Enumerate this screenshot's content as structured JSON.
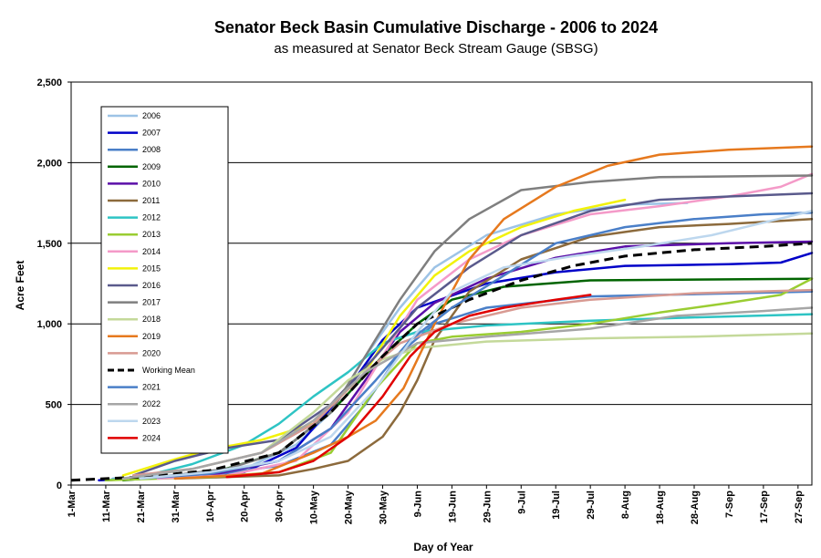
{
  "chart_data": {
    "type": "line",
    "title": "Senator Beck Basin Cumulative Discharge - 2006 to 2024",
    "subtitle": "as measured at Senator Beck Stream Gauge (SBSG)",
    "xlabel": "Day of Year",
    "ylabel": "Acre Feet",
    "x_unit": "days since 1-Mar",
    "xlim": [
      0,
      214
    ],
    "ylim": [
      0,
      2500
    ],
    "y_ticks": [
      0,
      500,
      1000,
      1500,
      2000,
      2500
    ],
    "y_tick_labels": [
      "0",
      "500",
      "1,000",
      "1,500",
      "2,000",
      "2,500"
    ],
    "x_tick_labels": [
      "1-Mar",
      "11-Mar",
      "21-Mar",
      "31-Mar",
      "10-Apr",
      "20-Apr",
      "30-Apr",
      "10-May",
      "20-May",
      "30-May",
      "9-Jun",
      "19-Jun",
      "29-Jun",
      "9-Jul",
      "19-Jul",
      "29-Jul",
      "8-Aug",
      "18-Aug",
      "28-Aug",
      "7-Sep",
      "17-Sep",
      "27-Sep"
    ],
    "x_tick_step": 10,
    "grid": "horizontal",
    "legend_position": "top-left",
    "series": [
      {
        "name": "2006",
        "color": "#9dc3e6",
        "dash": false,
        "points": [
          [
            12,
            40
          ],
          [
            30,
            60
          ],
          [
            50,
            100
          ],
          [
            65,
            250
          ],
          [
            75,
            450
          ],
          [
            85,
            800
          ],
          [
            95,
            1100
          ],
          [
            105,
            1350
          ],
          [
            120,
            1550
          ],
          [
            140,
            1680
          ],
          [
            160,
            1740
          ],
          [
            178,
            1750
          ]
        ]
      },
      {
        "name": "2007",
        "color": "#0000c8",
        "dash": false,
        "points": [
          [
            8,
            30
          ],
          [
            30,
            50
          ],
          [
            50,
            80
          ],
          [
            65,
            230
          ],
          [
            80,
            600
          ],
          [
            90,
            900
          ],
          [
            100,
            1100
          ],
          [
            120,
            1250
          ],
          [
            140,
            1320
          ],
          [
            160,
            1360
          ],
          [
            190,
            1370
          ],
          [
            205,
            1380
          ],
          [
            214,
            1440
          ]
        ]
      },
      {
        "name": "2008",
        "color": "#4a7fc8",
        "dash": false,
        "points": [
          [
            20,
            40
          ],
          [
            40,
            60
          ],
          [
            60,
            120
          ],
          [
            75,
            250
          ],
          [
            85,
            500
          ],
          [
            95,
            820
          ],
          [
            105,
            1000
          ],
          [
            120,
            1100
          ],
          [
            150,
            1170
          ],
          [
            214,
            1200
          ]
        ]
      },
      {
        "name": "2009",
        "color": "#006400",
        "dash": false,
        "points": [
          [
            15,
            30
          ],
          [
            40,
            70
          ],
          [
            60,
            200
          ],
          [
            75,
            450
          ],
          [
            90,
            800
          ],
          [
            100,
            1000
          ],
          [
            110,
            1150
          ],
          [
            125,
            1230
          ],
          [
            150,
            1270
          ],
          [
            214,
            1280
          ]
        ]
      },
      {
        "name": "2010",
        "color": "#5b0fa8",
        "dash": false,
        "points": [
          [
            10,
            30
          ],
          [
            40,
            60
          ],
          [
            60,
            150
          ],
          [
            75,
            350
          ],
          [
            85,
            650
          ],
          [
            95,
            950
          ],
          [
            105,
            1130
          ],
          [
            120,
            1280
          ],
          [
            140,
            1410
          ],
          [
            160,
            1480
          ],
          [
            190,
            1500
          ],
          [
            214,
            1510
          ]
        ]
      },
      {
        "name": "2011",
        "color": "#8c6a3c",
        "dash": false,
        "points": [
          [
            30,
            40
          ],
          [
            60,
            60
          ],
          [
            70,
            100
          ],
          [
            80,
            150
          ],
          [
            90,
            300
          ],
          [
            95,
            450
          ],
          [
            100,
            650
          ],
          [
            105,
            900
          ],
          [
            115,
            1200
          ],
          [
            130,
            1400
          ],
          [
            150,
            1540
          ],
          [
            170,
            1600
          ],
          [
            190,
            1620
          ],
          [
            214,
            1650
          ]
        ]
      },
      {
        "name": "2012",
        "color": "#2ec4c4",
        "dash": false,
        "points": [
          [
            10,
            30
          ],
          [
            20,
            50
          ],
          [
            35,
            130
          ],
          [
            50,
            250
          ],
          [
            60,
            380
          ],
          [
            70,
            550
          ],
          [
            80,
            700
          ],
          [
            90,
            880
          ],
          [
            100,
            950
          ],
          [
            120,
            990
          ],
          [
            150,
            1020
          ],
          [
            180,
            1040
          ],
          [
            214,
            1060
          ]
        ]
      },
      {
        "name": "2013",
        "color": "#9acd32",
        "dash": false,
        "points": [
          [
            10,
            30
          ],
          [
            40,
            50
          ],
          [
            60,
            80
          ],
          [
            75,
            200
          ],
          [
            88,
            600
          ],
          [
            100,
            880
          ],
          [
            110,
            920
          ],
          [
            130,
            950
          ],
          [
            150,
            1000
          ],
          [
            170,
            1070
          ],
          [
            190,
            1130
          ],
          [
            205,
            1180
          ],
          [
            214,
            1280
          ]
        ]
      },
      {
        "name": "2014",
        "color": "#f49ac8",
        "dash": false,
        "points": [
          [
            25,
            40
          ],
          [
            45,
            60
          ],
          [
            65,
            150
          ],
          [
            80,
            450
          ],
          [
            90,
            800
          ],
          [
            100,
            1150
          ],
          [
            115,
            1400
          ],
          [
            130,
            1550
          ],
          [
            150,
            1680
          ],
          [
            170,
            1730
          ],
          [
            190,
            1790
          ],
          [
            205,
            1850
          ],
          [
            214,
            1930
          ]
        ]
      },
      {
        "name": "2015",
        "color": "#f2f20a",
        "dash": false,
        "points": [
          [
            15,
            60
          ],
          [
            30,
            160
          ],
          [
            40,
            220
          ],
          [
            55,
            280
          ],
          [
            70,
            380
          ],
          [
            85,
            700
          ],
          [
            95,
            1050
          ],
          [
            105,
            1300
          ],
          [
            115,
            1450
          ],
          [
            130,
            1600
          ],
          [
            145,
            1700
          ],
          [
            160,
            1770
          ]
        ]
      },
      {
        "name": "2016",
        "color": "#5a5a8c",
        "dash": false,
        "points": [
          [
            18,
            60
          ],
          [
            30,
            150
          ],
          [
            45,
            230
          ],
          [
            60,
            280
          ],
          [
            75,
            500
          ],
          [
            88,
            800
          ],
          [
            100,
            1100
          ],
          [
            115,
            1350
          ],
          [
            130,
            1550
          ],
          [
            150,
            1700
          ],
          [
            170,
            1770
          ],
          [
            190,
            1790
          ],
          [
            214,
            1810
          ]
        ]
      },
      {
        "name": "2017",
        "color": "#7f7f7f",
        "dash": false,
        "points": [
          [
            25,
            50
          ],
          [
            45,
            100
          ],
          [
            60,
            200
          ],
          [
            75,
            450
          ],
          [
            85,
            800
          ],
          [
            95,
            1150
          ],
          [
            105,
            1450
          ],
          [
            115,
            1650
          ],
          [
            130,
            1830
          ],
          [
            150,
            1880
          ],
          [
            170,
            1910
          ],
          [
            214,
            1920
          ]
        ]
      },
      {
        "name": "2018",
        "color": "#c4d99a",
        "dash": false,
        "points": [
          [
            15,
            40
          ],
          [
            35,
            100
          ],
          [
            55,
            200
          ],
          [
            70,
            450
          ],
          [
            80,
            650
          ],
          [
            90,
            780
          ],
          [
            100,
            850
          ],
          [
            120,
            890
          ],
          [
            150,
            910
          ],
          [
            180,
            920
          ],
          [
            214,
            940
          ]
        ]
      },
      {
        "name": "2019",
        "color": "#e6791e",
        "dash": false,
        "points": [
          [
            30,
            40
          ],
          [
            55,
            70
          ],
          [
            70,
            200
          ],
          [
            80,
            300
          ],
          [
            88,
            400
          ],
          [
            96,
            600
          ],
          [
            105,
            1000
          ],
          [
            115,
            1400
          ],
          [
            125,
            1650
          ],
          [
            140,
            1850
          ],
          [
            155,
            1980
          ],
          [
            170,
            2050
          ],
          [
            190,
            2080
          ],
          [
            214,
            2100
          ]
        ]
      },
      {
        "name": "2020",
        "color": "#d89a92",
        "dash": false,
        "points": [
          [
            18,
            60
          ],
          [
            35,
            100
          ],
          [
            55,
            200
          ],
          [
            70,
            380
          ],
          [
            85,
            700
          ],
          [
            95,
            880
          ],
          [
            110,
            1000
          ],
          [
            130,
            1100
          ],
          [
            150,
            1150
          ],
          [
            180,
            1190
          ],
          [
            214,
            1210
          ]
        ]
      },
      {
        "name": "Working Mean",
        "color": "#000000",
        "dash": true,
        "points": [
          [
            0,
            30
          ],
          [
            20,
            50
          ],
          [
            40,
            90
          ],
          [
            60,
            200
          ],
          [
            75,
            450
          ],
          [
            90,
            800
          ],
          [
            100,
            1000
          ],
          [
            115,
            1150
          ],
          [
            130,
            1270
          ],
          [
            145,
            1360
          ],
          [
            160,
            1420
          ],
          [
            180,
            1460
          ],
          [
            200,
            1480
          ],
          [
            214,
            1500
          ]
        ]
      },
      {
        "name": "2021",
        "color": "#4a7fc8",
        "dash": false,
        "points": [
          [
            20,
            40
          ],
          [
            40,
            70
          ],
          [
            60,
            150
          ],
          [
            75,
            350
          ],
          [
            88,
            650
          ],
          [
            98,
            900
          ],
          [
            110,
            1100
          ],
          [
            125,
            1300
          ],
          [
            140,
            1500
          ],
          [
            160,
            1600
          ],
          [
            180,
            1650
          ],
          [
            200,
            1680
          ],
          [
            214,
            1690
          ]
        ]
      },
      {
        "name": "2022",
        "color": "#a6a6a6",
        "dash": false,
        "points": [
          [
            15,
            40
          ],
          [
            35,
            100
          ],
          [
            55,
            200
          ],
          [
            70,
            400
          ],
          [
            85,
            700
          ],
          [
            100,
            880
          ],
          [
            120,
            920
          ],
          [
            150,
            970
          ],
          [
            175,
            1050
          ],
          [
            200,
            1080
          ],
          [
            214,
            1100
          ]
        ]
      },
      {
        "name": "2023",
        "color": "#bdd7ee",
        "dash": false,
        "points": [
          [
            20,
            40
          ],
          [
            40,
            80
          ],
          [
            60,
            150
          ],
          [
            75,
            300
          ],
          [
            88,
            600
          ],
          [
            100,
            950
          ],
          [
            110,
            1200
          ],
          [
            125,
            1350
          ],
          [
            145,
            1420
          ],
          [
            165,
            1480
          ],
          [
            185,
            1550
          ],
          [
            214,
            1700
          ]
        ]
      },
      {
        "name": "2024",
        "color": "#e00000",
        "dash": false,
        "points": [
          [
            45,
            50
          ],
          [
            60,
            80
          ],
          [
            70,
            150
          ],
          [
            80,
            300
          ],
          [
            90,
            550
          ],
          [
            98,
            800
          ],
          [
            105,
            950
          ],
          [
            115,
            1050
          ],
          [
            125,
            1100
          ],
          [
            140,
            1150
          ],
          [
            150,
            1180
          ]
        ]
      }
    ]
  }
}
